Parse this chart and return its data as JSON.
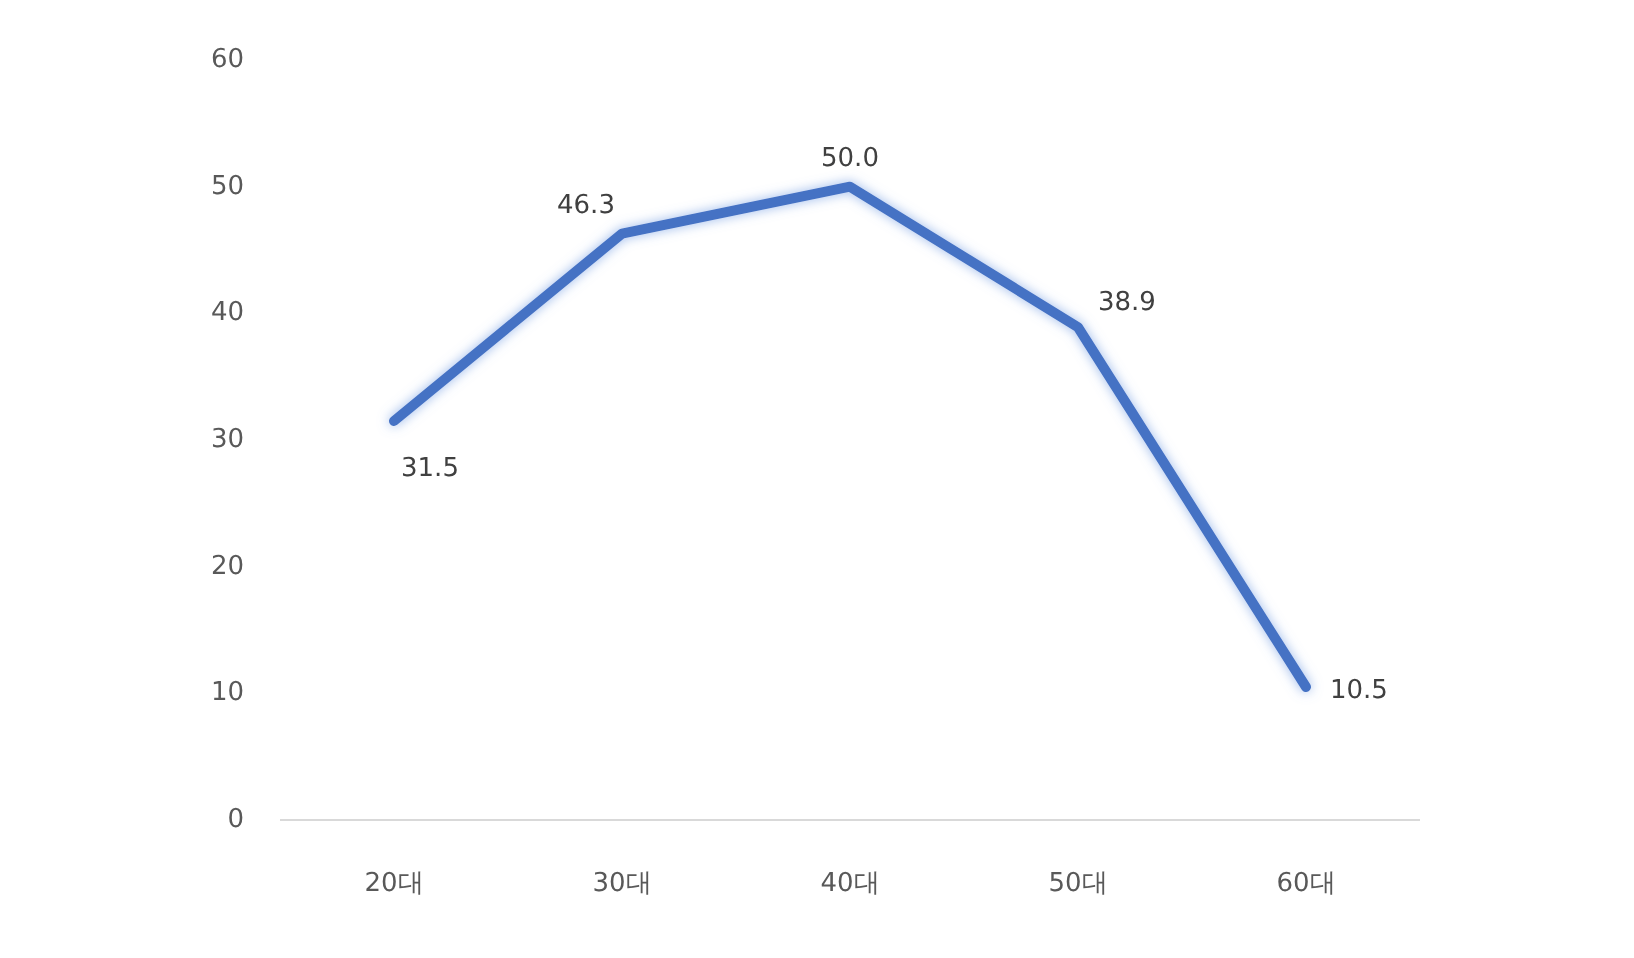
{
  "chart_data": {
    "type": "line",
    "categories": [
      "20대",
      "30대",
      "40대",
      "50대",
      "60대"
    ],
    "series": [
      {
        "color": "#4472c4",
        "values": [
          31.5,
          46.3,
          50.0,
          38.9,
          10.5
        ]
      }
    ],
    "ylim": [
      0,
      60
    ],
    "yticks": [
      0,
      10,
      20,
      30,
      40,
      50,
      60
    ],
    "grid": false,
    "line_style": "solid",
    "value_labels": [
      "31.5",
      "46.3",
      "50.0",
      "38.9",
      "10.5"
    ]
  }
}
